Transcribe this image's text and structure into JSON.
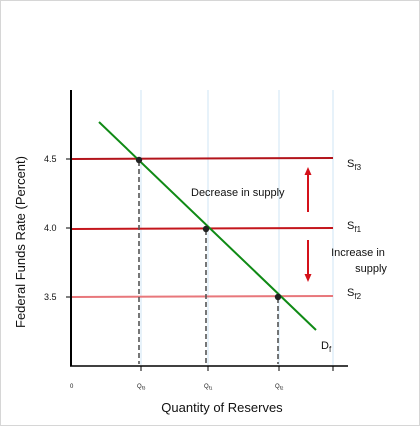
{
  "chart_data": {
    "type": "line",
    "xlabel": "Quantity of Reserves",
    "ylabel": "Federal Funds Rate (Percent)",
    "yticks": [
      "4.5",
      "4.0",
      "3.5"
    ],
    "xticks": [
      {
        "main": "0",
        "sub": ""
      },
      {
        "main": "Q",
        "sub": "f3"
      },
      {
        "main": "Q",
        "sub": "f1"
      },
      {
        "main": "Q",
        "sub": "f2"
      }
    ],
    "ylim": [
      3.0,
      5.1
    ],
    "grid_x": true,
    "supply_lines": [
      {
        "main": "S",
        "sub": "f3",
        "rate": 4.5,
        "color": "#b3141b"
      },
      {
        "main": "S",
        "sub": "f1",
        "rate": 4.0,
        "color": "#c4161c"
      },
      {
        "main": "S",
        "sub": "f2",
        "rate": 3.5,
        "color": "#e8777b"
      }
    ],
    "demand": {
      "main": "D",
      "sub": "f",
      "color": "#0f8a15"
    },
    "equilibria": [
      {
        "x_label": "Qf3",
        "rate": 4.5
      },
      {
        "x_label": "Qf1",
        "rate": 4.0
      },
      {
        "x_label": "Qf2",
        "rate": 3.5
      }
    ],
    "annotations": [
      {
        "text": "Decrease in supply",
        "direction": "up"
      },
      {
        "text": "Increase in supply",
        "direction": "down"
      }
    ],
    "colors": {
      "axis": "#000000",
      "grid": "#cfe6f5",
      "arrow": "#d4111a",
      "guide": "#555555"
    }
  }
}
